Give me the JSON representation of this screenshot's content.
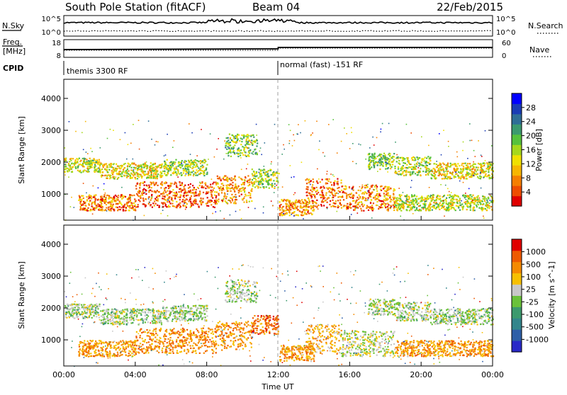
{
  "header": {
    "station": "South Pole Station (fitACF)",
    "beam": "Beam 04",
    "date": "22/Feb/2015"
  },
  "top_panels": {
    "nsky_label": "N.Sky",
    "nsearch_label": "N.Search",
    "noise_ticks": [
      "10^5",
      "10^0"
    ],
    "freq_label_line1": "Freq.",
    "freq_label_line2": "[MHz]",
    "freq_ticks": [
      "18",
      "8"
    ],
    "nave_label": "Nave",
    "nave_ticks": [
      "60",
      "0"
    ],
    "cpid_label": "CPID",
    "cpid_segments": [
      {
        "label": "themis 3300 RF",
        "start_hour": 0
      },
      {
        "label": "normal (fast) -151 RF",
        "start_hour": 12
      }
    ]
  },
  "chart_data": [
    {
      "type": "heatmap",
      "name": "power-panel",
      "title": "",
      "xlabel": "",
      "ylabel": "Slant Range [km]",
      "xlim_hours": [
        0,
        24
      ],
      "ylim": [
        180,
        4600
      ],
      "yticks": [
        1000,
        2000,
        3000,
        4000
      ],
      "colorbar": {
        "label": "Power [dB]",
        "range": [
          0,
          32
        ],
        "ticks": [
          "4",
          "8",
          "12",
          "16",
          "20",
          "24",
          "28"
        ],
        "colors": [
          "#0000ff",
          "#1a3cb5",
          "#2f6e96",
          "#3c9a6e",
          "#57c23c",
          "#a6d81c",
          "#f0e000",
          "#f7b600",
          "#f57f00",
          "#ee4d00",
          "#e00000"
        ]
      },
      "echo_bands": [
        {
          "t0": 0.0,
          "t1": 2.0,
          "r0": 1700,
          "r1": 2150,
          "level": 0.55
        },
        {
          "t0": 2.0,
          "t1": 5.5,
          "r0": 1500,
          "r1": 2000,
          "level": 0.6
        },
        {
          "t0": 5.5,
          "t1": 8.0,
          "r0": 1600,
          "r1": 2100,
          "level": 0.5
        },
        {
          "t0": 0.8,
          "t1": 4.0,
          "r0": 500,
          "r1": 1000,
          "level": 0.8
        },
        {
          "t0": 4.0,
          "t1": 8.5,
          "r0": 600,
          "r1": 1400,
          "level": 0.85
        },
        {
          "t0": 8.5,
          "t1": 10.5,
          "r0": 700,
          "r1": 1600,
          "level": 0.75
        },
        {
          "t0": 9.0,
          "t1": 10.8,
          "r0": 2200,
          "r1": 2900,
          "level": 0.45
        },
        {
          "t0": 10.5,
          "t1": 12.0,
          "r0": 1200,
          "r1": 1800,
          "level": 0.5
        },
        {
          "t0": 12.0,
          "t1": 14.0,
          "r0": 350,
          "r1": 850,
          "level": 0.75
        },
        {
          "t0": 13.5,
          "t1": 15.5,
          "r0": 600,
          "r1": 1500,
          "level": 0.85
        },
        {
          "t0": 15.5,
          "t1": 18.5,
          "r0": 500,
          "r1": 1300,
          "level": 0.8
        },
        {
          "t0": 17.0,
          "t1": 18.5,
          "r0": 1800,
          "r1": 2300,
          "level": 0.45
        },
        {
          "t0": 18.5,
          "t1": 20.5,
          "r0": 1600,
          "r1": 2200,
          "level": 0.5
        },
        {
          "t0": 20.5,
          "t1": 24.0,
          "r0": 1500,
          "r1": 2000,
          "level": 0.6
        },
        {
          "t0": 18.5,
          "t1": 24.0,
          "r0": 500,
          "r1": 1000,
          "level": 0.55
        }
      ]
    },
    {
      "type": "heatmap",
      "name": "velocity-panel",
      "title": "",
      "xlabel": "Time UT",
      "ylabel": "Slant Range [km]",
      "xlim_hours": [
        0,
        24
      ],
      "ylim": [
        180,
        4600
      ],
      "yticks": [
        1000,
        2000,
        3000,
        4000
      ],
      "xticks": [
        "00:00",
        "04:00",
        "08:00",
        "12:00",
        "16:00",
        "20:00",
        "00:00"
      ],
      "colorbar": {
        "label": "Velocity [m s^-1]",
        "ticks": [
          "1000",
          "500",
          "100",
          "25",
          "-25",
          "-100",
          "-500",
          "-1000"
        ],
        "colors": [
          "#2929c8",
          "#2e5fa8",
          "#33868c",
          "#3c9a6e",
          "#6ac23a",
          "#c8c8c8",
          "#f7c000",
          "#f58a00",
          "#ee5a00",
          "#e00000"
        ]
      },
      "echo_bands": [
        {
          "t0": 0.0,
          "t1": 2.0,
          "r0": 1700,
          "r1": 2150,
          "level": 0.5
        },
        {
          "t0": 2.0,
          "t1": 5.5,
          "r0": 1500,
          "r1": 2000,
          "level": 0.5
        },
        {
          "t0": 5.5,
          "t1": 8.0,
          "r0": 1600,
          "r1": 2100,
          "level": 0.5
        },
        {
          "t0": 0.8,
          "t1": 4.0,
          "r0": 500,
          "r1": 1000,
          "level": 0.25
        },
        {
          "t0": 4.0,
          "t1": 8.5,
          "r0": 600,
          "r1": 1400,
          "level": 0.22
        },
        {
          "t0": 8.5,
          "t1": 10.5,
          "r0": 700,
          "r1": 1600,
          "level": 0.25
        },
        {
          "t0": 9.0,
          "t1": 10.8,
          "r0": 2200,
          "r1": 2900,
          "level": 0.5
        },
        {
          "t0": 10.5,
          "t1": 12.0,
          "r0": 1200,
          "r1": 1800,
          "level": 0.15
        },
        {
          "t0": 12.0,
          "t1": 14.0,
          "r0": 350,
          "r1": 850,
          "level": 0.25
        },
        {
          "t0": 13.5,
          "t1": 15.5,
          "r0": 600,
          "r1": 1500,
          "level": 0.3
        },
        {
          "t0": 15.5,
          "t1": 18.5,
          "r0": 500,
          "r1": 1300,
          "level": 0.45
        },
        {
          "t0": 17.0,
          "t1": 18.5,
          "r0": 1800,
          "r1": 2300,
          "level": 0.5
        },
        {
          "t0": 18.5,
          "t1": 20.5,
          "r0": 1600,
          "r1": 2200,
          "level": 0.5
        },
        {
          "t0": 20.5,
          "t1": 24.0,
          "r0": 1500,
          "r1": 2000,
          "level": 0.5
        },
        {
          "t0": 18.5,
          "t1": 24.0,
          "r0": 500,
          "r1": 1000,
          "level": 0.25
        }
      ]
    }
  ]
}
